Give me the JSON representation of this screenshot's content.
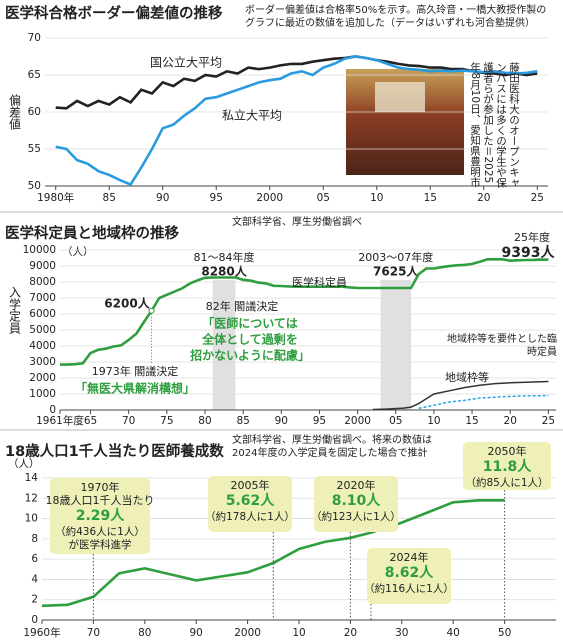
{
  "chart_data": [
    {
      "type": "line",
      "title": "医学科合格ボーダー偏差値の推移",
      "subtitle": [
        "ボーダー偏差値は合格率50%を示す。高久玲音・一橋大教授作製の",
        "グラフに最近の数値を追加した（データはいずれも河合塾提供）"
      ],
      "y_label": "偏差値",
      "photo_caption": "藤田医科大のオープンキャンパスには多くの学生や保護者らが参加した＝2025年8月10日、愛知県豊明市",
      "x": [
        1980,
        1981,
        1982,
        1983,
        1984,
        1985,
        1986,
        1987,
        1988,
        1989,
        1990,
        1991,
        1992,
        1993,
        1994,
        1995,
        1996,
        1997,
        1998,
        1999,
        2000,
        2001,
        2002,
        2003,
        2004,
        2005,
        2006,
        2007,
        2008,
        2009,
        2010,
        2011,
        2012,
        2013,
        2014,
        2015,
        2016,
        2017,
        2018,
        2019,
        2020,
        2021,
        2022,
        2023,
        2024,
        2025
      ],
      "series": [
        {
          "name": "国公立大平均",
          "color": "#222222",
          "values": [
            60.6,
            60.5,
            61.5,
            60.8,
            61.5,
            61,
            62,
            61.3,
            63,
            62.5,
            64,
            63.5,
            64.5,
            64.2,
            65,
            64.8,
            65.5,
            65.2,
            66,
            65.8,
            66,
            66.3,
            66.5,
            66.5,
            66.8,
            67,
            67.2,
            67.3,
            67.5,
            67.3,
            67,
            66.8,
            66.5,
            66.3,
            66.2,
            66,
            66,
            65.8,
            65.8,
            65.5,
            65.3,
            65.2,
            65,
            65.2,
            65,
            65.2
          ]
        },
        {
          "name": "私立大平均",
          "color": "#2b9be0",
          "values": [
            55.3,
            55,
            53.5,
            53,
            52,
            51.5,
            50.8,
            50.2,
            52.5,
            55,
            57.8,
            58.3,
            59.5,
            60.5,
            61.8,
            62,
            62.5,
            63,
            63.5,
            64,
            64.3,
            64.5,
            65.2,
            65.5,
            65,
            66,
            66.5,
            67.2,
            67.5,
            67.3,
            67,
            66.5,
            66,
            65.8,
            65.7,
            65.5,
            65.6,
            65.5,
            65.6,
            65.5,
            65.4,
            65.5,
            65.3,
            65.2,
            65.3,
            65.5
          ]
        }
      ],
      "xlim": [
        1979,
        2026
      ],
      "ylim": [
        50,
        70
      ],
      "yticks": [
        50,
        55,
        60,
        65,
        70
      ],
      "xticks": [
        {
          "value": 1980,
          "label": "1980年"
        },
        {
          "value": 1985,
          "label": "85"
        },
        {
          "value": 1990,
          "label": "90"
        },
        {
          "value": 1995,
          "label": "95"
        },
        2000,
        {
          "value": 2005,
          "label": "05"
        },
        {
          "value": 2010,
          "label": "10"
        },
        {
          "value": 2015,
          "label": "15"
        },
        {
          "value": 2020,
          "label": "20"
        },
        {
          "value": 2025,
          "label": "25"
        }
      ],
      "grid": true
    },
    {
      "type": "line",
      "title": "医学科定員と地域枠の推移",
      "subtitle": [
        "文部科学省、厚生労働省調べ"
      ],
      "y_label": "入学定員",
      "y_unit": "（人）",
      "series": [
        {
          "name": "医学科定員",
          "color": "#2e9e3e",
          "x": [
            1961,
            1962,
            1963,
            1964,
            1965,
            1966,
            1967,
            1968,
            1969,
            1970,
            1971,
            1972,
            1973,
            1974,
            1975,
            1976,
            1977,
            1978,
            1979,
            1980,
            1981,
            1982,
            1983,
            1984,
            1985,
            1986,
            1987,
            1988,
            1989,
            1990,
            1991,
            1992,
            1993,
            1994,
            1995,
            1996,
            1997,
            1998,
            1999,
            2000,
            2001,
            2002,
            2003,
            2004,
            2005,
            2006,
            2007,
            2008,
            2009,
            2010,
            2011,
            2012,
            2013,
            2014,
            2015,
            2016,
            2017,
            2018,
            2019,
            2020,
            2021,
            2022,
            2023,
            2024,
            2025
          ],
          "values": [
            2840,
            2840,
            2860,
            2920,
            3560,
            3760,
            3830,
            3970,
            4040,
            4380,
            4760,
            5500,
            6200,
            7000,
            7200,
            7400,
            7600,
            7900,
            8100,
            8260,
            8280,
            8280,
            8280,
            8280,
            8140,
            8080,
            7960,
            7910,
            7760,
            7750,
            7720,
            7710,
            7705,
            7705,
            7705,
            7705,
            7705,
            7705,
            7660,
            7630,
            7625,
            7625,
            7625,
            7625,
            7625,
            7625,
            7625,
            8486,
            8846,
            8846,
            8923,
            8991,
            9041,
            9069,
            9134,
            9262,
            9420,
            9419,
            9420,
            9330,
            9357,
            9374,
            9384,
            9403,
            9393
          ]
        },
        {
          "name": "地域枠等",
          "color": "#333333",
          "x": [
            2002,
            2004,
            2006,
            2007,
            2008,
            2009,
            2010,
            2012,
            2014,
            2016,
            2018,
            2020,
            2022,
            2025
          ],
          "values": [
            30,
            60,
            120,
            180,
            400,
            700,
            1000,
            1200,
            1400,
            1550,
            1650,
            1700,
            1730,
            1780
          ]
        },
        {
          "name": "地域枠等を要件とした臨時定員",
          "color": "#29a3e0",
          "dashed": true,
          "x": [
            2008,
            2010,
            2012,
            2014,
            2016,
            2018,
            2020,
            2022,
            2025
          ],
          "values": [
            100,
            300,
            500,
            600,
            750,
            800,
            850,
            880,
            900
          ]
        }
      ],
      "bands": [
        {
          "xlim": [
            1981,
            1984
          ],
          "label": "81～84年度",
          "value_label": "8280人"
        },
        {
          "xlim": [
            2003,
            2007
          ],
          "label": "2003～07年度",
          "value_label": "7625人"
        }
      ],
      "annotations": [
        "25年度",
        "9393人",
        "6200人",
        "82年 閣議決定",
        "「医師については",
        "全体として過剰を",
        "招かないように配慮」",
        "1973年 閣議決定",
        "「無医大県解消構想」"
      ],
      "xlim": [
        1961,
        2026
      ],
      "ylim": [
        0,
        10000
      ],
      "yticks": [
        0,
        1000,
        2000,
        3000,
        4000,
        5000,
        6000,
        7000,
        8000,
        9000,
        10000
      ],
      "xticks": [
        {
          "value": 1961,
          "label": "1961年度"
        },
        {
          "value": 1965,
          "label": "65"
        },
        {
          "value": 1970,
          "label": "70"
        },
        {
          "value": 1975,
          "label": "75"
        },
        {
          "value": 1980,
          "label": "80"
        },
        {
          "value": 1985,
          "label": "85"
        },
        {
          "value": 1990,
          "label": "90"
        },
        {
          "value": 1995,
          "label": "95"
        },
        2000,
        {
          "value": 2005,
          "label": "05"
        },
        {
          "value": 2010,
          "label": "10"
        },
        {
          "value": 2015,
          "label": "15"
        },
        {
          "value": 2020,
          "label": "20"
        },
        {
          "value": 2025,
          "label": "25"
        }
      ],
      "grid": true
    },
    {
      "type": "line",
      "title": "18歳人口1千人当たり医師養成数",
      "subtitle": [
        "文部科学省、厚生労働省調べ。将来の数値は",
        "2024年度の入学定員を固定した場合で推計"
      ],
      "y_unit": "（人）",
      "x": [
        1960,
        1965,
        1970,
        1975,
        1980,
        1985,
        1990,
        1995,
        2000,
        2005,
        2010,
        2015,
        2020,
        2024,
        2030,
        2035,
        2040,
        2045,
        2050
      ],
      "series": [
        {
          "color": "#2e9e3e",
          "values": [
            1.4,
            1.5,
            2.29,
            4.6,
            5.1,
            4.5,
            3.9,
            4.3,
            4.7,
            5.62,
            7.0,
            7.7,
            8.1,
            8.62,
            9.6,
            10.6,
            11.6,
            11.8,
            11.8
          ]
        }
      ],
      "callouts": [
        {
          "x": 1970,
          "lines": [
            "1970年",
            "18歳人口1千人当たり"
          ],
          "value_label": "2.29人",
          "notes": [
            "（約436人に1人）",
            "が医学科進学"
          ]
        },
        {
          "x": 2005,
          "lines": [
            "2005年"
          ],
          "value_label": "5.62人",
          "notes": [
            "（約178人に1人）"
          ]
        },
        {
          "x": 2020,
          "lines": [
            "2020年"
          ],
          "value_label": "8.10人",
          "notes": [
            "（約123人に1人）"
          ]
        },
        {
          "x": 2024,
          "lines": [
            "2024年"
          ],
          "value_label": "8.62人",
          "notes": [
            "（約116人に1人）"
          ]
        },
        {
          "x": 2050,
          "lines": [
            "2050年"
          ],
          "value_label": "11.8人",
          "notes": [
            "（約85人に1人）"
          ]
        }
      ],
      "xlim": [
        1960,
        2060
      ],
      "ylim": [
        0,
        14
      ],
      "yticks": [
        0,
        2,
        4,
        6,
        8,
        10,
        12,
        14
      ],
      "xticks": [
        {
          "value": 1960,
          "label": "1960年"
        },
        {
          "value": 1970,
          "label": "70"
        },
        {
          "value": 1980,
          "label": "80"
        },
        {
          "value": 1990,
          "label": "90"
        },
        2000,
        {
          "value": 2010,
          "label": "10"
        },
        {
          "value": 2020,
          "label": "20"
        },
        {
          "value": 2030,
          "label": "30"
        },
        {
          "value": 2040,
          "label": "40"
        },
        {
          "value": 2050,
          "label": "50"
        }
      ],
      "grid": true
    }
  ]
}
